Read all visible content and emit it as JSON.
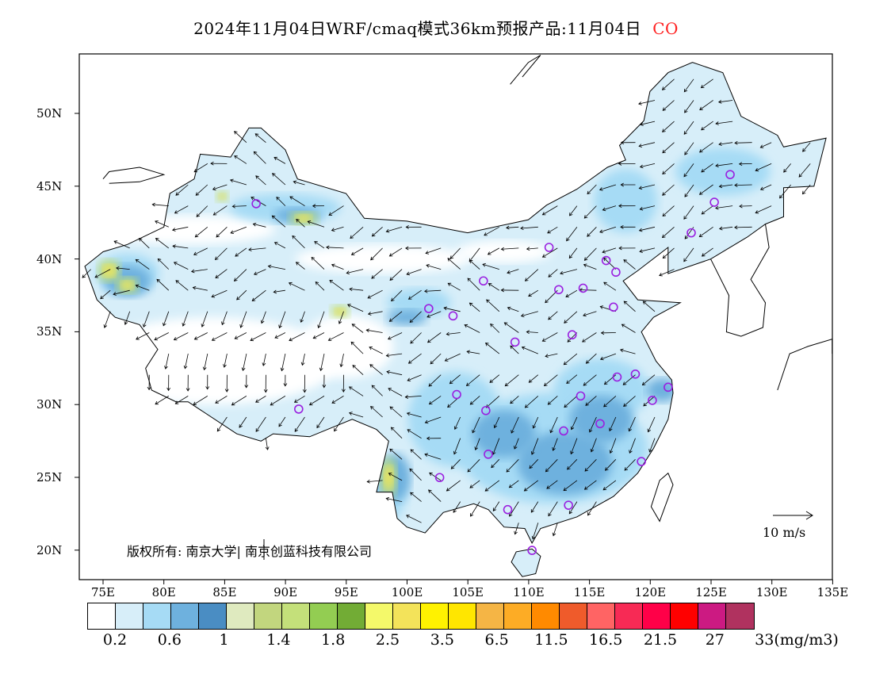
{
  "title": {
    "main": "2024年11月04日WRF/cmaq模式36km预报产品:11月04日",
    "species": "CO",
    "species_color": "#ff2020"
  },
  "axes": {
    "lat_labels": [
      "50N",
      "45N",
      "40N",
      "35N",
      "30N",
      "25N",
      "20N"
    ],
    "lon_labels": [
      "75E",
      "80E",
      "85E",
      "90E",
      "95E",
      "100E",
      "105E",
      "110E",
      "115E",
      "120E",
      "125E",
      "130E",
      "135E"
    ]
  },
  "colorbar": {
    "colors": [
      "#ffffff",
      "#d7eef9",
      "#a6dbf5",
      "#6eb1de",
      "#4a8dc3",
      "#dfeabf",
      "#c2d67e",
      "#c4e07a",
      "#93cd52",
      "#72ac35",
      "#f4f96a",
      "#f3e35a",
      "#fff200",
      "#ffe600",
      "#f5b545",
      "#fdac25",
      "#ff8a00",
      "#ef5b2b",
      "#ff6464",
      "#f72a55",
      "#ff0048",
      "#ff0000",
      "#cc1a82",
      "#b0325f",
      "#9b35c8",
      "#8a2be2"
    ],
    "labels": [
      "0.2",
      "0.6",
      "1",
      "1.4",
      "1.8",
      "2.5",
      "3.5",
      "6.5",
      "11.5",
      "16.5",
      "21.5",
      "27",
      "33(mg/m3)"
    ]
  },
  "copyright": "版权所有: 南京大学| 南京创蓝科技有限公司",
  "wind_scale": "10 m/s"
}
